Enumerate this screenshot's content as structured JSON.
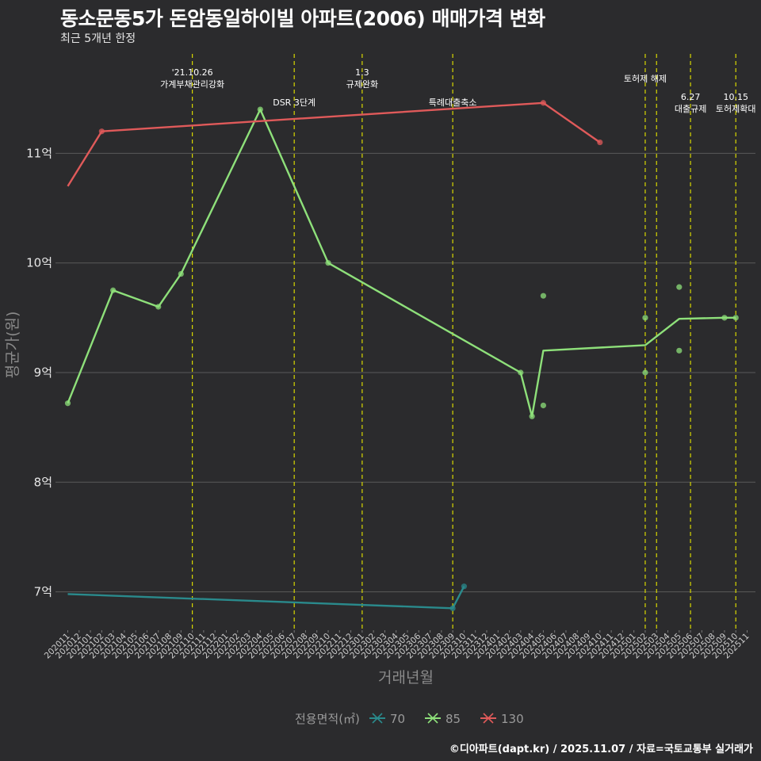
{
  "header": {
    "title": "동소문동5가 돈암동일하이빌 아파트(2006) 매매가격 변화",
    "subtitle": "최근 5개년 한정"
  },
  "caption": "©디아파트(dapt.kr) / 2025.11.07 / 자료=국토교통부 실거래가",
  "colors": {
    "background": "#2b2b2d",
    "grid": "#5a5a5a",
    "vline": "#d8d800",
    "s70": "#2a8a8c",
    "s85": "#8ee07a",
    "s130": "#e05a5a"
  },
  "chart_data": {
    "type": "line",
    "title": "동소문동5가 돈암동일하이빌 아파트(2006) 매매가격 변화",
    "xlabel": "거래년월",
    "ylabel": "평균가(원)",
    "ylim": [
      6.65,
      11.95
    ],
    "yticks": [
      {
        "value": 7,
        "label": "7억"
      },
      {
        "value": 8,
        "label": "8억"
      },
      {
        "value": 9,
        "label": "9억"
      },
      {
        "value": 10,
        "label": "10억"
      },
      {
        "value": 11,
        "label": "11억"
      }
    ],
    "categories": [
      "202011",
      "202012",
      "202101",
      "202102",
      "202103",
      "202104",
      "202105",
      "202106",
      "202107",
      "202108",
      "202109",
      "202110",
      "202111",
      "202112",
      "202201",
      "202202",
      "202203",
      "202204",
      "202205",
      "202206",
      "202207",
      "202208",
      "202209",
      "202210",
      "202211",
      "202212",
      "202301",
      "202302",
      "202303",
      "202304",
      "202305",
      "202306",
      "202307",
      "202308",
      "202309",
      "202310",
      "202311",
      "202312",
      "202401",
      "202402",
      "202403",
      "202404",
      "202405",
      "202406",
      "202407",
      "202408",
      "202409",
      "202410",
      "202411",
      "202412",
      "202501",
      "202502",
      "202503",
      "202504",
      "202505",
      "202506",
      "202507",
      "202508",
      "202509",
      "202510",
      "202511"
    ],
    "legend_title": "전용면적(㎡)",
    "series": [
      {
        "name": "70",
        "line": [
          [
            "202011",
            6.98
          ],
          [
            "202309",
            6.85
          ],
          [
            "202310",
            7.05
          ]
        ],
        "points": [
          [
            "202309",
            6.85
          ],
          [
            "202310",
            7.05
          ]
        ]
      },
      {
        "name": "85",
        "line": [
          [
            "202011",
            8.72
          ],
          [
            "202103",
            9.75
          ],
          [
            "202107",
            9.6
          ],
          [
            "202109",
            9.9
          ],
          [
            "202204",
            11.4
          ],
          [
            "202210",
            10.0
          ],
          [
            "202403",
            9.0
          ],
          [
            "202404",
            8.6
          ],
          [
            "202405",
            9.2
          ],
          [
            "202502",
            9.25
          ],
          [
            "202505",
            9.49
          ],
          [
            "202509",
            9.5
          ],
          [
            "202510",
            9.5
          ]
        ],
        "points": [
          [
            "202011",
            8.72
          ],
          [
            "202103",
            9.75
          ],
          [
            "202107",
            9.6
          ],
          [
            "202109",
            9.9
          ],
          [
            "202204",
            11.4
          ],
          [
            "202210",
            10.0
          ],
          [
            "202403",
            9.0
          ],
          [
            "202404",
            8.6
          ],
          [
            "202405",
            8.7
          ],
          [
            "202405",
            9.7
          ],
          [
            "202502",
            9.0
          ],
          [
            "202502",
            9.5
          ],
          [
            "202505",
            9.2
          ],
          [
            "202505",
            9.78
          ],
          [
            "202509",
            9.5
          ],
          [
            "202510",
            9.5
          ]
        ]
      },
      {
        "name": "130",
        "line": [
          [
            "202011",
            10.7
          ],
          [
            "202102",
            11.2
          ],
          [
            "202405",
            11.46
          ],
          [
            "202410",
            11.1
          ]
        ],
        "points": [
          [
            "202102",
            11.2
          ],
          [
            "202405",
            11.46
          ],
          [
            "202410",
            11.1
          ]
        ]
      }
    ],
    "events": [
      {
        "x": "202110",
        "lines": [
          "'21.10.26",
          "가계부채관리강화"
        ],
        "level": 0
      },
      {
        "x": "202207",
        "lines": [
          "DSR 3단계"
        ],
        "level": 2
      },
      {
        "x": "202301",
        "lines": [
          "1.3",
          "규제완화"
        ],
        "level": 0
      },
      {
        "x": "202309",
        "lines": [
          "특례대출축소"
        ],
        "level": 2
      },
      {
        "x": "202502",
        "lines": [
          "토허제 해제"
        ],
        "level": 1
      },
      {
        "x": "202503",
        "lines": [],
        "level": 1
      },
      {
        "x": "202506",
        "lines": [
          "6.27",
          "대출규제"
        ],
        "level": 3
      },
      {
        "x": "202510",
        "lines": [
          "10.15",
          "토허제확대"
        ],
        "level": 3
      }
    ]
  }
}
